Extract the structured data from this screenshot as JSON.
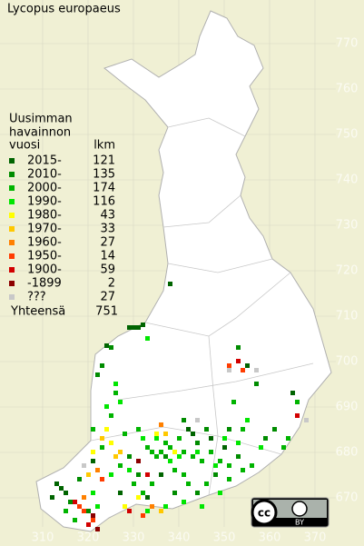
{
  "title": "Lycopus europaeus",
  "legend": {
    "heading": [
      "Uusimman",
      "havainnon"
    ],
    "col_year": "vuosi",
    "col_count": "lkm",
    "rows": [
      {
        "label": "2015-",
        "count": 121,
        "color": "#006400"
      },
      {
        "label": "2010-",
        "count": 135,
        "color": "#008c00"
      },
      {
        "label": "2000-",
        "count": 174,
        "color": "#00b400"
      },
      {
        "label": "1990-",
        "count": 116,
        "color": "#00e600"
      },
      {
        "label": "1980-",
        "count": 43,
        "color": "#ffff00"
      },
      {
        "label": "1970-",
        "count": 33,
        "color": "#ffc800"
      },
      {
        "label": "1960-",
        "count": 27,
        "color": "#ff8000"
      },
      {
        "label": "1950-",
        "count": 14,
        "color": "#ff3c00"
      },
      {
        "label": "1900-",
        "count": 59,
        "color": "#d20000"
      },
      {
        "label": "-1899",
        "count": 2,
        "color": "#8c0000"
      },
      {
        "label": "???",
        "count": 27,
        "color": "#c8c8c8"
      }
    ],
    "total_label": "Yhteensä",
    "total": 751
  },
  "x_axis": {
    "ticks": [
      310,
      320,
      330,
      340,
      350,
      360,
      370
    ]
  },
  "y_axis": {
    "ticks": [
      670,
      680,
      690,
      700,
      710,
      720,
      730,
      740,
      750,
      760,
      770
    ]
  },
  "license": {
    "badge": "cc",
    "attribution": "BY"
  }
}
